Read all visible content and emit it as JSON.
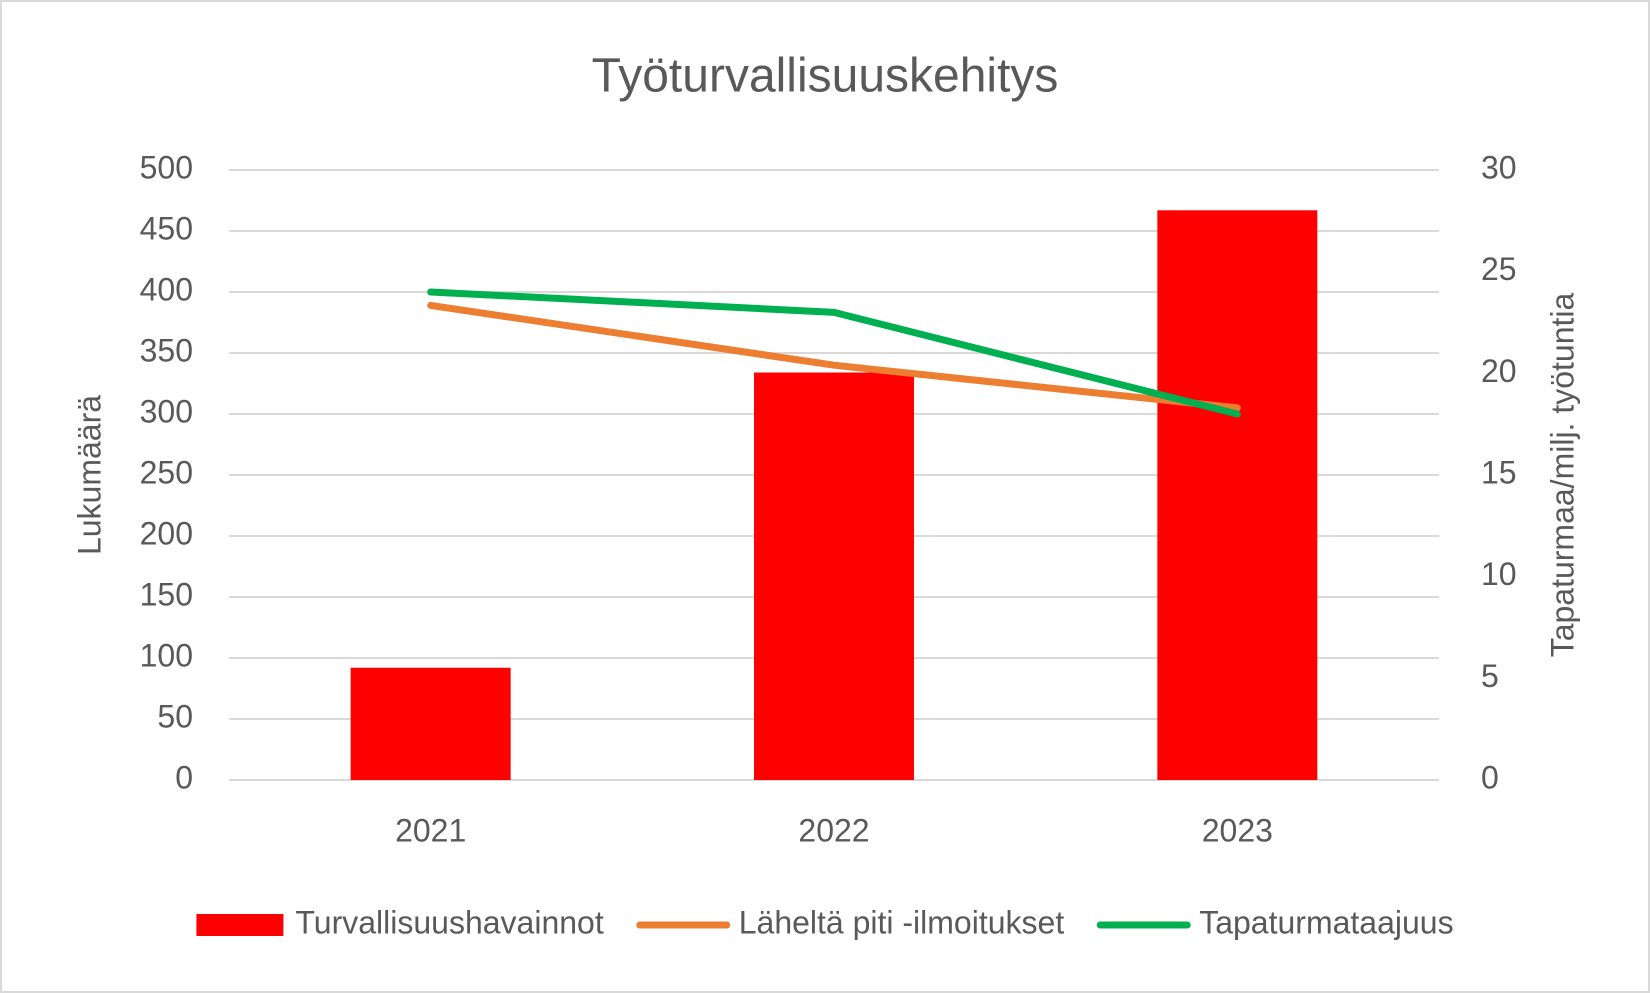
{
  "chart_data": {
    "type": "bar",
    "title": "Työturvallisuuskehitys",
    "categories": [
      "2021",
      "2022",
      "2023"
    ],
    "y_label": "Lukumäärä",
    "y2_label": "Tapaturmaa/milj. työtuntia",
    "ylim": [
      0,
      500
    ],
    "yticks": [
      0,
      50,
      100,
      150,
      200,
      250,
      300,
      350,
      400,
      450,
      500
    ],
    "y2lim": [
      0,
      30
    ],
    "y2ticks": [
      0,
      5,
      10,
      15,
      20,
      25,
      30
    ],
    "grid": true,
    "legend": "bottom",
    "series": [
      {
        "name": "Turvallisuushavainnot",
        "color": "#ff0000",
        "type": "bar",
        "values": [
          92,
          334,
          467
        ]
      },
      {
        "name": "Läheltä piti -ilmoitukset",
        "color": "#ed7d31",
        "type": "line",
        "values": [
          389,
          340,
          305
        ]
      },
      {
        "name": "Tapaturmataajuus",
        "color": "#00b050",
        "type": "line",
        "axis": "y2",
        "values": [
          24,
          23,
          18
        ]
      }
    ]
  }
}
